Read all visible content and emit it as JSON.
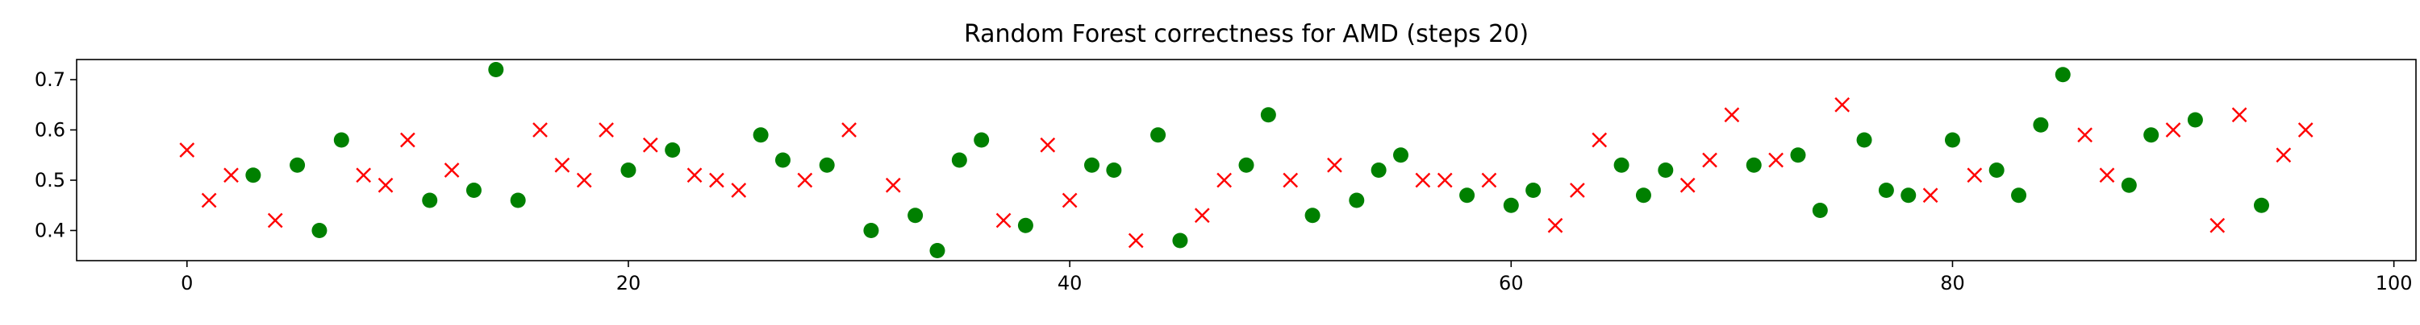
{
  "chart_data": {
    "type": "scatter",
    "title": "Random Forest correctness for AMD (steps 20)",
    "xlabel": "",
    "ylabel": "",
    "xlim": [
      -5,
      101
    ],
    "ylim": [
      0.34,
      0.74
    ],
    "xticks": [
      0,
      20,
      40,
      60,
      80,
      100
    ],
    "yticks": [
      0.4,
      0.5,
      0.6,
      0.7
    ],
    "xtick_labels": [
      "0",
      "20",
      "40",
      "60",
      "80",
      "100"
    ],
    "ytick_labels": [
      "0.4",
      "0.5",
      "0.6",
      "0.7"
    ],
    "grid": false,
    "legend": "none",
    "series": [
      {
        "marker": "circle",
        "color": "#008000",
        "points": [
          [
            3,
            0.51
          ],
          [
            5,
            0.53
          ],
          [
            6,
            0.4
          ],
          [
            7,
            0.58
          ],
          [
            11,
            0.46
          ],
          [
            13,
            0.48
          ],
          [
            14,
            0.72
          ],
          [
            15,
            0.46
          ],
          [
            20,
            0.52
          ],
          [
            22,
            0.56
          ],
          [
            26,
            0.59
          ],
          [
            27,
            0.54
          ],
          [
            29,
            0.53
          ],
          [
            31,
            0.4
          ],
          [
            33,
            0.43
          ],
          [
            34,
            0.36
          ],
          [
            35,
            0.54
          ],
          [
            36,
            0.58
          ],
          [
            38,
            0.41
          ],
          [
            41,
            0.53
          ],
          [
            42,
            0.52
          ],
          [
            44,
            0.59
          ],
          [
            45,
            0.38
          ],
          [
            48,
            0.53
          ],
          [
            49,
            0.63
          ],
          [
            51,
            0.43
          ],
          [
            53,
            0.46
          ],
          [
            54,
            0.52
          ],
          [
            55,
            0.55
          ],
          [
            58,
            0.47
          ],
          [
            60,
            0.45
          ],
          [
            61,
            0.48
          ],
          [
            65,
            0.53
          ],
          [
            66,
            0.47
          ],
          [
            67,
            0.52
          ],
          [
            71,
            0.53
          ],
          [
            73,
            0.55
          ],
          [
            74,
            0.44
          ],
          [
            76,
            0.58
          ],
          [
            77,
            0.48
          ],
          [
            78,
            0.47
          ],
          [
            80,
            0.58
          ],
          [
            82,
            0.52
          ],
          [
            83,
            0.47
          ],
          [
            84,
            0.61
          ],
          [
            85,
            0.71
          ],
          [
            88,
            0.49
          ],
          [
            89,
            0.59
          ],
          [
            91,
            0.62
          ],
          [
            94,
            0.45
          ]
        ]
      },
      {
        "marker": "x",
        "color": "#ff0000",
        "points": [
          [
            0,
            0.56
          ],
          [
            1,
            0.46
          ],
          [
            2,
            0.51
          ],
          [
            4,
            0.42
          ],
          [
            8,
            0.51
          ],
          [
            9,
            0.49
          ],
          [
            10,
            0.58
          ],
          [
            12,
            0.52
          ],
          [
            16,
            0.6
          ],
          [
            17,
            0.53
          ],
          [
            18,
            0.5
          ],
          [
            19,
            0.6
          ],
          [
            21,
            0.57
          ],
          [
            23,
            0.51
          ],
          [
            24,
            0.5
          ],
          [
            25,
            0.48
          ],
          [
            28,
            0.5
          ],
          [
            30,
            0.6
          ],
          [
            32,
            0.49
          ],
          [
            37,
            0.42
          ],
          [
            39,
            0.57
          ],
          [
            40,
            0.46
          ],
          [
            43,
            0.38
          ],
          [
            46,
            0.43
          ],
          [
            47,
            0.5
          ],
          [
            50,
            0.5
          ],
          [
            52,
            0.53
          ],
          [
            56,
            0.5
          ],
          [
            57,
            0.5
          ],
          [
            59,
            0.5
          ],
          [
            62,
            0.41
          ],
          [
            63,
            0.48
          ],
          [
            64,
            0.58
          ],
          [
            68,
            0.49
          ],
          [
            69,
            0.54
          ],
          [
            70,
            0.63
          ],
          [
            72,
            0.54
          ],
          [
            75,
            0.65
          ],
          [
            79,
            0.47
          ],
          [
            81,
            0.51
          ],
          [
            86,
            0.59
          ],
          [
            87,
            0.51
          ],
          [
            90,
            0.6
          ],
          [
            92,
            0.41
          ],
          [
            93,
            0.63
          ],
          [
            95,
            0.55
          ],
          [
            96,
            0.6
          ]
        ]
      }
    ]
  }
}
